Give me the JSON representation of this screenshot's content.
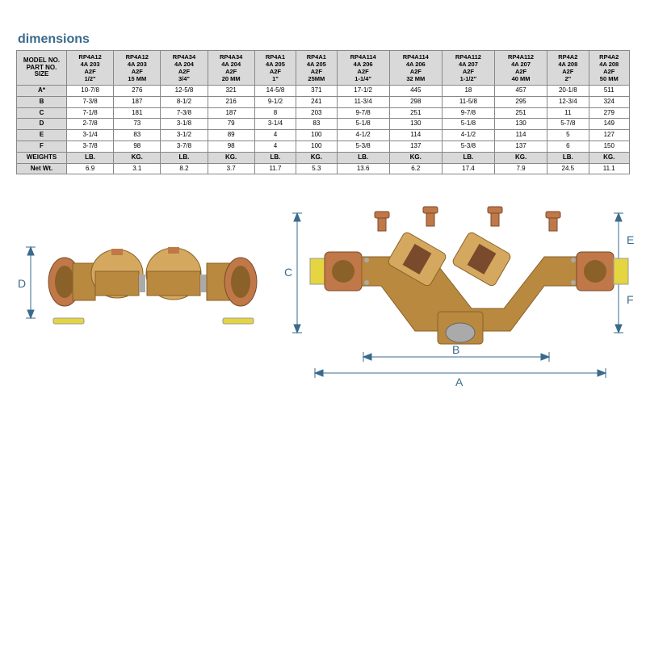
{
  "title": "dimensions",
  "header_label": "MODEL NO.\nPART NO.\nSIZE",
  "columns": [
    {
      "model": "RP4A12",
      "part": "4A 203",
      "a2f": "A2F",
      "size": "1/2\""
    },
    {
      "model": "RP4A12",
      "part": "4A 203",
      "a2f": "A2F",
      "size": "15 MM"
    },
    {
      "model": "RP4A34",
      "part": "4A 204",
      "a2f": "A2F",
      "size": "3/4\""
    },
    {
      "model": "RP4A34",
      "part": "4A 204",
      "a2f": "A2F",
      "size": "20 MM"
    },
    {
      "model": "RP4A1",
      "part": "4A 205",
      "a2f": "A2F",
      "size": "1\""
    },
    {
      "model": "RP4A1",
      "part": "4A 205",
      "a2f": "A2F",
      "size": "25MM"
    },
    {
      "model": "RP4A114",
      "part": "4A 206",
      "a2f": "A2F",
      "size": "1-1/4\""
    },
    {
      "model": "RP4A114",
      "part": "4A 206",
      "a2f": "A2F",
      "size": "32 MM"
    },
    {
      "model": "RP4A112",
      "part": "4A 207",
      "a2f": "A2F",
      "size": "1-1/2\""
    },
    {
      "model": "RP4A112",
      "part": "4A 207",
      "a2f": "A2F",
      "size": "40 MM"
    },
    {
      "model": "RP4A2",
      "part": "4A 208",
      "a2f": "A2F",
      "size": "2\""
    },
    {
      "model": "RP4A2",
      "part": "4A 208",
      "a2f": "A2F",
      "size": "50 MM"
    }
  ],
  "rows": [
    {
      "label": "A*",
      "vals": [
        "10-7/8",
        "276",
        "12-5/8",
        "321",
        "14-5/8",
        "371",
        "17-1/2",
        "445",
        "18",
        "457",
        "20-1/8",
        "511"
      ]
    },
    {
      "label": "B",
      "vals": [
        "7-3/8",
        "187",
        "8-1/2",
        "216",
        "9-1/2",
        "241",
        "11-3/4",
        "298",
        "11-5/8",
        "295",
        "12-3/4",
        "324"
      ]
    },
    {
      "label": "C",
      "vals": [
        "7-1/8",
        "181",
        "7-3/8",
        "187",
        "8",
        "203",
        "9-7/8",
        "251",
        "9-7/8",
        "251",
        "11",
        "279"
      ]
    },
    {
      "label": "D",
      "vals": [
        "2-7/8",
        "73",
        "3-1/8",
        "79",
        "3-1/4",
        "83",
        "5-1/8",
        "130",
        "5-1/8",
        "130",
        "5-7/8",
        "149"
      ]
    },
    {
      "label": "E",
      "vals": [
        "3-1/4",
        "83",
        "3-1/2",
        "89",
        "4",
        "100",
        "4-1/2",
        "114",
        "4-1/2",
        "114",
        "5",
        "127"
      ]
    },
    {
      "label": "F",
      "vals": [
        "3-7/8",
        "98",
        "3-7/8",
        "98",
        "4",
        "100",
        "5-3/8",
        "137",
        "5-3/8",
        "137",
        "6",
        "150"
      ]
    }
  ],
  "weights_label": "WEIGHTS",
  "weights_units": [
    "LB.",
    "KG.",
    "LB.",
    "KG.",
    "LB.",
    "KG.",
    "LB.",
    "KG.",
    "LB.",
    "KG.",
    "LB.",
    "KG."
  ],
  "netwt_label": "Net Wt.",
  "netwt_vals": [
    "6.9",
    "3.1",
    "8.2",
    "3.7",
    "11.7",
    "5.3",
    "13.6",
    "6.2",
    "17.4",
    "7.9",
    "24.5",
    "11.1"
  ],
  "colors": {
    "brass": "#b8893f",
    "brass_dark": "#8a6128",
    "brass_light": "#d4a95f",
    "bronze": "#c07848",
    "bronze_dark": "#7a4a2c",
    "valve": "#e5d540",
    "steel": "#aaaaaa",
    "label": "#3a6a8c"
  },
  "dim_letters": {
    "A": "A",
    "B": "B",
    "C": "C",
    "D": "D",
    "E": "E",
    "F": "F"
  }
}
